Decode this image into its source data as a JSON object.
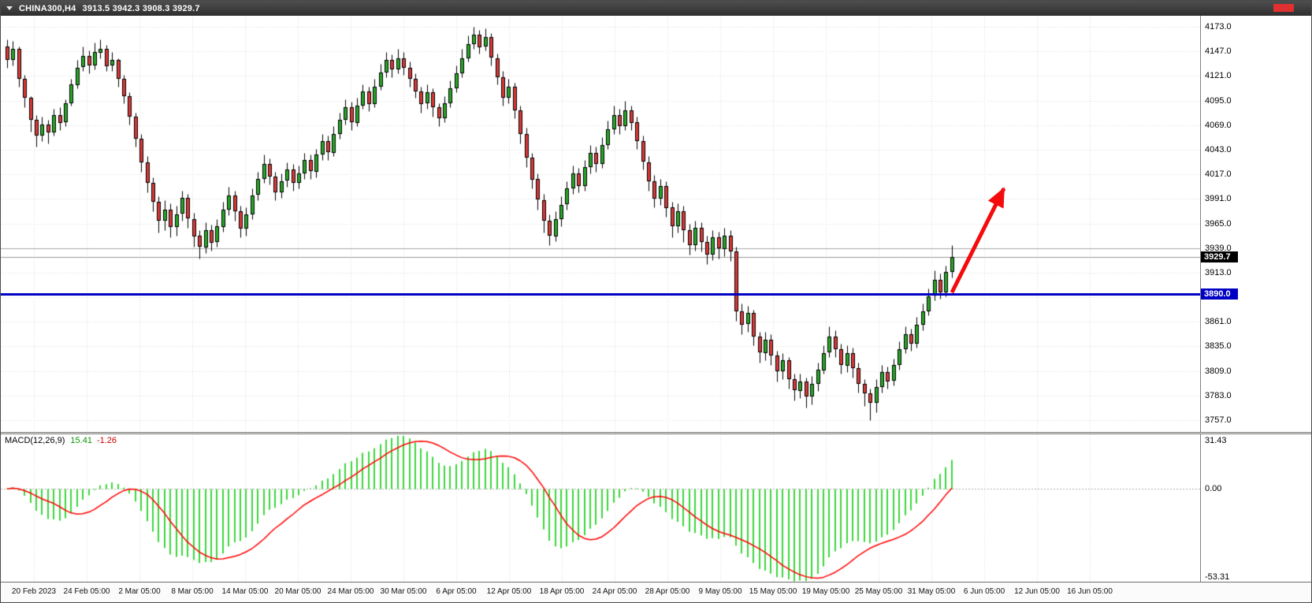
{
  "window": {
    "symbol_period": "CHINA300,H4",
    "ohlc_text": "3913.5 3942.3 3908.3 3929.7"
  },
  "price_axis": {
    "labels": [
      "4173.0",
      "4147.0",
      "4121.0",
      "4095.0",
      "4069.0",
      "4043.0",
      "4017.0",
      "3991.0",
      "3965.0",
      "3939.0",
      "3913.0",
      "3861.0",
      "3835.0",
      "3809.0",
      "3783.0",
      "3757.0"
    ],
    "max": 4173.0,
    "min": 3757.0,
    "step": 26.0
  },
  "current_price_badge": {
    "text": "3929.7",
    "value": 3929.7
  },
  "time_axis": {
    "labels": [
      "20 Feb 2023",
      "24 Feb 05:00",
      "2 Mar 05:00",
      "8 Mar 05:00",
      "14 Mar 05:00",
      "20 Mar 05:00",
      "24 Mar 05:00",
      "30 Mar 05:00",
      "6 Apr 05:00",
      "12 Apr 05:00",
      "18 Apr 05:00",
      "24 Apr 05:00",
      "28 Apr 05:00",
      "9 May 05:00",
      "15 May 05:00",
      "19 May 05:00",
      "25 May 05:00",
      "31 May 05:00",
      "6 Jun 05:00",
      "12 Jun 05:00",
      "16 Jun 05:00"
    ]
  },
  "macd_panel": {
    "label": "MACD(12,26,9)",
    "macd_value": "15.41",
    "signal_value": "-1.26",
    "axis_labels": [
      "31.43",
      "0.00",
      "-53.31"
    ],
    "max": 31.43,
    "min": -53.31
  },
  "annotations": {
    "support_line": {
      "price": 3890.0,
      "badge": "3890.0",
      "color": "#0000c4"
    },
    "price_level_line": {
      "price": 3939.0,
      "color": "#a8a8a8"
    },
    "trend_arrow": {
      "from_bar": 162,
      "from_price": 3892,
      "to_bar": 171,
      "to_price": 4002,
      "color": "#f40b0b"
    }
  },
  "colors": {
    "candle_up": "#26a826",
    "candle_down": "#dc3838",
    "candle_outline": "#000000",
    "macd_histogram": "#3cd83c",
    "macd_signal": "#ff0000",
    "support_line": "#0000c4",
    "price_level_line": "#a8a8a8",
    "current_price_line": "#999999",
    "arrow": "#f40b0b",
    "badge_current_bg": "#000000",
    "badge_support_bg": "#0000c4",
    "grid": "#dcdcdc",
    "titlebar_bg": "#3c3c3c",
    "titlebar_marker": "#e03030"
  },
  "chart_data": [
    {
      "type": "candlestick",
      "title": "CHINA300,H4",
      "symbol": "CHINA300",
      "timeframe": "H4",
      "ylim": [
        3757.0,
        4173.0
      ],
      "y_step": 26.0,
      "current_bar": {
        "open": 3913.5,
        "high": 3942.3,
        "low": 3908.3,
        "close": 3929.7
      },
      "x_tick_labels": [
        "20 Feb 2023",
        "24 Feb 05:00",
        "2 Mar 05:00",
        "8 Mar 05:00",
        "14 Mar 05:00",
        "20 Mar 05:00",
        "24 Mar 05:00",
        "30 Mar 05:00",
        "6 Apr 05:00",
        "12 Apr 05:00",
        "18 Apr 05:00",
        "24 Apr 05:00",
        "28 Apr 05:00",
        "9 May 05:00",
        "15 May 05:00",
        "19 May 05:00",
        "25 May 05:00",
        "31 May 05:00",
        "6 Jun 05:00",
        "12 Jun 05:00",
        "16 Jun 05:00"
      ],
      "candles": [
        [
          4152,
          4160,
          4130,
          4138
        ],
        [
          4138,
          4158,
          4132,
          4150
        ],
        [
          4150,
          4152,
          4110,
          4118
        ],
        [
          4118,
          4122,
          4088,
          4098
        ],
        [
          4098,
          4100,
          4062,
          4075
        ],
        [
          4075,
          4080,
          4046,
          4058
        ],
        [
          4058,
          4078,
          4052,
          4070
        ],
        [
          4070,
          4075,
          4050,
          4062
        ],
        [
          4062,
          4086,
          4058,
          4080
        ],
        [
          4080,
          4088,
          4064,
          4072
        ],
        [
          4072,
          4096,
          4068,
          4092
        ],
        [
          4092,
          4118,
          4090,
          4112
        ],
        [
          4112,
          4138,
          4108,
          4130
        ],
        [
          4130,
          4152,
          4126,
          4142
        ],
        [
          4142,
          4148,
          4124,
          4132
        ],
        [
          4132,
          4156,
          4128,
          4146
        ],
        [
          4146,
          4160,
          4140,
          4150
        ],
        [
          4150,
          4154,
          4126,
          4132
        ],
        [
          4132,
          4146,
          4126,
          4138
        ],
        [
          4138,
          4140,
          4110,
          4118
        ],
        [
          4118,
          4122,
          4092,
          4100
        ],
        [
          4100,
          4104,
          4070,
          4078
        ],
        [
          4078,
          4082,
          4046,
          4055
        ],
        [
          4055,
          4060,
          4020,
          4030
        ],
        [
          4030,
          4036,
          3998,
          4008
        ],
        [
          4008,
          4014,
          3978,
          3988
        ],
        [
          3988,
          3994,
          3955,
          3968
        ],
        [
          3968,
          3990,
          3958,
          3980
        ],
        [
          3980,
          3986,
          3950,
          3962
        ],
        [
          3962,
          3984,
          3952,
          3975
        ],
        [
          3975,
          4000,
          3968,
          3992
        ],
        [
          3992,
          3996,
          3960,
          3970
        ],
        [
          3970,
          3976,
          3940,
          3952
        ],
        [
          3952,
          3958,
          3928,
          3940
        ],
        [
          3940,
          3966,
          3934,
          3958
        ],
        [
          3958,
          3964,
          3936,
          3945
        ],
        [
          3945,
          3970,
          3940,
          3962
        ],
        [
          3962,
          3988,
          3956,
          3980
        ],
        [
          3980,
          4004,
          3974,
          3995
        ],
        [
          3995,
          4000,
          3968,
          3978
        ],
        [
          3978,
          3984,
          3950,
          3960
        ],
        [
          3960,
          3982,
          3952,
          3975
        ],
        [
          3975,
          4002,
          3970,
          3995
        ],
        [
          3995,
          4020,
          3990,
          4012
        ],
        [
          4012,
          4038,
          4008,
          4028
        ],
        [
          4028,
          4034,
          4006,
          4015
        ],
        [
          4015,
          4020,
          3990,
          3998
        ],
        [
          3998,
          4018,
          3992,
          4010
        ],
        [
          4010,
          4030,
          4004,
          4022
        ],
        [
          4022,
          4028,
          4000,
          4008
        ],
        [
          4008,
          4026,
          4002,
          4018
        ],
        [
          4018,
          4040,
          4012,
          4032
        ],
        [
          4032,
          4038,
          4012,
          4020
        ],
        [
          4020,
          4044,
          4014,
          4038
        ],
        [
          4038,
          4060,
          4032,
          4052
        ],
        [
          4052,
          4058,
          4032,
          4040
        ],
        [
          4040,
          4068,
          4036,
          4060
        ],
        [
          4060,
          4082,
          4055,
          4075
        ],
        [
          4075,
          4096,
          4070,
          4088
        ],
        [
          4088,
          4094,
          4064,
          4072
        ],
        [
          4072,
          4098,
          4068,
          4090
        ],
        [
          4090,
          4112,
          4086,
          4105
        ],
        [
          4105,
          4110,
          4084,
          4092
        ],
        [
          4092,
          4118,
          4088,
          4110
        ],
        [
          4110,
          4134,
          4106,
          4125
        ],
        [
          4125,
          4146,
          4120,
          4138
        ],
        [
          4138,
          4144,
          4120,
          4128
        ],
        [
          4128,
          4150,
          4124,
          4140
        ],
        [
          4140,
          4146,
          4122,
          4130
        ],
        [
          4130,
          4136,
          4110,
          4118
        ],
        [
          4118,
          4124,
          4098,
          4105
        ],
        [
          4105,
          4110,
          4082,
          4092
        ],
        [
          4092,
          4112,
          4086,
          4104
        ],
        [
          4104,
          4108,
          4078,
          4088
        ],
        [
          4088,
          4092,
          4068,
          4076
        ],
        [
          4076,
          4100,
          4072,
          4092
        ],
        [
          4092,
          4116,
          4088,
          4108
        ],
        [
          4108,
          4132,
          4104,
          4124
        ],
        [
          4124,
          4150,
          4120,
          4140
        ],
        [
          4140,
          4164,
          4136,
          4155
        ],
        [
          4155,
          4173,
          4150,
          4165
        ],
        [
          4165,
          4170,
          4145,
          4152
        ],
        [
          4152,
          4171,
          4148,
          4162
        ],
        [
          4162,
          4166,
          4132,
          4140
        ],
        [
          4140,
          4145,
          4112,
          4120
        ],
        [
          4120,
          4126,
          4090,
          4098
        ],
        [
          4098,
          4118,
          4092,
          4110
        ],
        [
          4110,
          4114,
          4076,
          4085
        ],
        [
          4085,
          4090,
          4050,
          4060
        ],
        [
          4060,
          4066,
          4025,
          4035
        ],
        [
          4035,
          4040,
          4002,
          4012
        ],
        [
          4012,
          4018,
          3980,
          3990
        ],
        [
          3990,
          3996,
          3955,
          3968
        ],
        [
          3968,
          3975,
          3942,
          3952
        ],
        [
          3952,
          3978,
          3946,
          3970
        ],
        [
          3970,
          3994,
          3962,
          3985
        ],
        [
          3985,
          4010,
          3980,
          4002
        ],
        [
          4002,
          4026,
          3996,
          4018
        ],
        [
          4018,
          4024,
          3998,
          4005
        ],
        [
          4005,
          4032,
          4000,
          4025
        ],
        [
          4025,
          4048,
          4018,
          4040
        ],
        [
          4040,
          4046,
          4020,
          4028
        ],
        [
          4028,
          4056,
          4024,
          4048
        ],
        [
          4048,
          4074,
          4044,
          4065
        ],
        [
          4065,
          4090,
          4060,
          4080
        ],
        [
          4080,
          4086,
          4060,
          4068
        ],
        [
          4068,
          4095,
          4064,
          4085
        ],
        [
          4085,
          4090,
          4064,
          4072
        ],
        [
          4072,
          4078,
          4044,
          4052
        ],
        [
          4052,
          4058,
          4022,
          4030
        ],
        [
          4030,
          4036,
          4000,
          4010
        ],
        [
          4010,
          4016,
          3982,
          3992
        ],
        [
          3992,
          4012,
          3985,
          4005
        ],
        [
          4005,
          4010,
          3972,
          3982
        ],
        [
          3982,
          3988,
          3950,
          3962
        ],
        [
          3962,
          3986,
          3955,
          3978
        ],
        [
          3978,
          3984,
          3945,
          3958
        ],
        [
          3958,
          3965,
          3932,
          3942
        ],
        [
          3942,
          3968,
          3936,
          3960
        ],
        [
          3960,
          3966,
          3935,
          3945
        ],
        [
          3945,
          3952,
          3922,
          3932
        ],
        [
          3932,
          3958,
          3926,
          3950
        ],
        [
          3950,
          3956,
          3928,
          3938
        ],
        [
          3938,
          3960,
          3930,
          3952
        ],
        [
          3952,
          3958,
          3925,
          3935
        ],
        [
          3935,
          3940,
          3862,
          3872
        ],
        [
          3872,
          3880,
          3848,
          3858
        ],
        [
          3858,
          3878,
          3850,
          3870
        ],
        [
          3870,
          3874,
          3836,
          3845
        ],
        [
          3845,
          3850,
          3818,
          3828
        ],
        [
          3828,
          3850,
          3820,
          3842
        ],
        [
          3842,
          3848,
          3815,
          3825
        ],
        [
          3825,
          3830,
          3798,
          3808
        ],
        [
          3808,
          3828,
          3800,
          3820
        ],
        [
          3820,
          3824,
          3790,
          3800
        ],
        [
          3800,
          3806,
          3778,
          3788
        ],
        [
          3788,
          3806,
          3780,
          3798
        ],
        [
          3798,
          3802,
          3770,
          3782
        ],
        [
          3782,
          3804,
          3774,
          3795
        ],
        [
          3795,
          3818,
          3788,
          3810
        ],
        [
          3810,
          3836,
          3806,
          3828
        ],
        [
          3828,
          3856,
          3824,
          3845
        ],
        [
          3845,
          3852,
          3824,
          3832
        ],
        [
          3832,
          3838,
          3806,
          3815
        ],
        [
          3815,
          3836,
          3808,
          3828
        ],
        [
          3828,
          3834,
          3802,
          3812
        ],
        [
          3812,
          3818,
          3786,
          3795
        ],
        [
          3795,
          3800,
          3772,
          3785
        ],
        [
          3785,
          3790,
          3757,
          3775
        ],
        [
          3775,
          3800,
          3765,
          3792
        ],
        [
          3792,
          3815,
          3786,
          3808
        ],
        [
          3808,
          3814,
          3790,
          3798
        ],
        [
          3798,
          3822,
          3794,
          3815
        ],
        [
          3815,
          3840,
          3810,
          3832
        ],
        [
          3832,
          3856,
          3828,
          3848
        ],
        [
          3848,
          3854,
          3830,
          3838
        ],
        [
          3838,
          3866,
          3834,
          3858
        ],
        [
          3858,
          3880,
          3852,
          3872
        ],
        [
          3872,
          3896,
          3868,
          3888
        ],
        [
          3888,
          3915,
          3884,
          3905
        ],
        [
          3905,
          3912,
          3885,
          3892
        ],
        [
          3892,
          3920,
          3888,
          3913.5
        ],
        [
          3913.5,
          3942.3,
          3908.3,
          3929.7
        ]
      ]
    },
    {
      "type": "bar",
      "name": "MACD(12,26,9)",
      "params": {
        "fast_ema": 12,
        "slow_ema": 26,
        "signal_sma": 9
      },
      "current_values": {
        "macd": 15.41,
        "signal": -1.26
      },
      "ylim": [
        -53.31,
        31.43
      ],
      "axis_tick_labels": [
        "31.43",
        "0.00",
        "-53.31"
      ]
    }
  ]
}
